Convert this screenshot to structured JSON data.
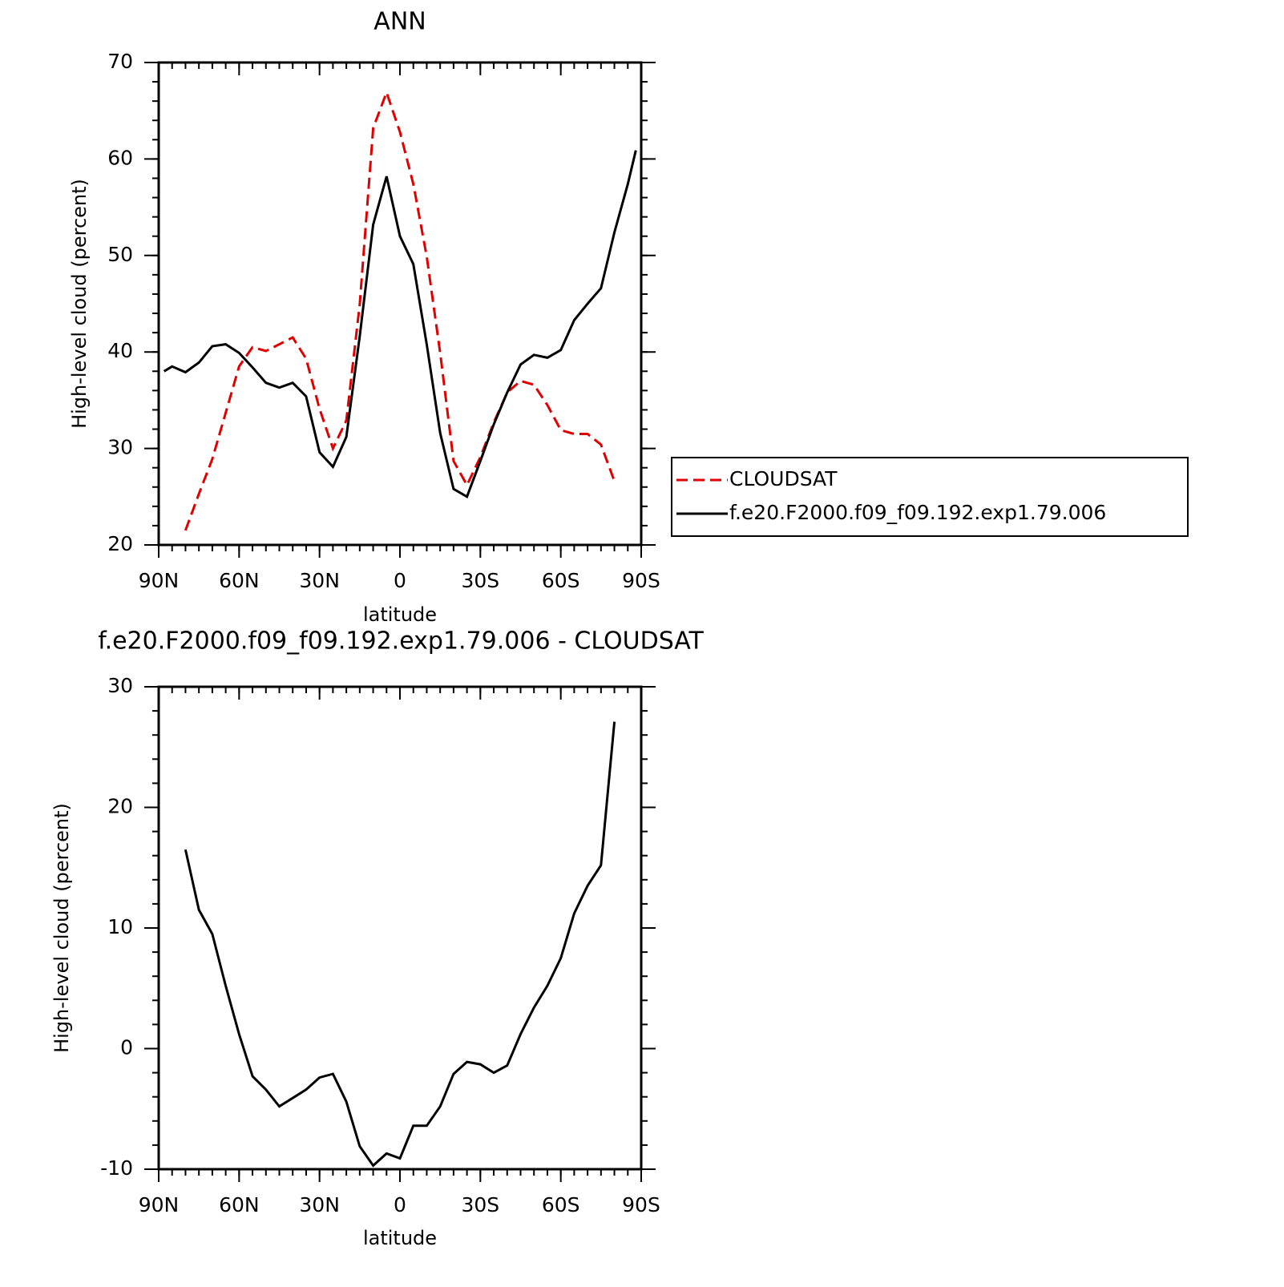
{
  "chart_data": [
    {
      "type": "line",
      "title": "ANN",
      "x_label": "latitude",
      "y_label": "High-level cloud (percent)",
      "xlim": [
        90,
        -90
      ],
      "ylim": [
        20,
        70
      ],
      "xticks": [
        {
          "value": 90,
          "label": "90N"
        },
        {
          "value": 60,
          "label": "60N"
        },
        {
          "value": 30,
          "label": "30N"
        },
        0,
        {
          "value": -30,
          "label": "30S"
        },
        {
          "value": -60,
          "label": "60S"
        },
        {
          "value": -90,
          "label": "90S"
        }
      ],
      "yticks": [
        20,
        30,
        40,
        50,
        60,
        70
      ],
      "x_minor_step": 5,
      "y_minor_step": 2,
      "legend": "outside-right",
      "series": [
        {
          "name": "CLOUDSAT",
          "color": "#e00000",
          "style": "dashed",
          "x": [
            80,
            75,
            70,
            65,
            60,
            55,
            50,
            45,
            40,
            35,
            30,
            25,
            20,
            15,
            10,
            5,
            0,
            -5,
            -10,
            -15,
            -20,
            -25,
            -30,
            -35,
            -40,
            -45,
            -50,
            -55,
            -60,
            -65,
            -70,
            -75,
            -80
          ],
          "values": [
            21.5,
            25.3,
            28.9,
            33.7,
            38.5,
            40.5,
            40.1,
            40.8,
            41.5,
            39.3,
            34.1,
            30.0,
            32.9,
            44.9,
            63.2,
            66.9,
            62.8,
            57.4,
            49.9,
            39.9,
            28.7,
            26.2,
            29.1,
            32.7,
            35.8,
            37.0,
            36.6,
            34.5,
            31.9,
            31.5,
            31.5,
            30.4,
            26.6
          ]
        },
        {
          "name": "f.e20.F2000.f09_f09.192.exp1.79.006",
          "color": "#000000",
          "style": "solid",
          "x": [
            88,
            85,
            80,
            75,
            70,
            65,
            60,
            55,
            50,
            45,
            40,
            35,
            30,
            25,
            20,
            15,
            10,
            5,
            0,
            -5,
            -10,
            -15,
            -20,
            -25,
            -30,
            -35,
            -40,
            -45,
            -50,
            -55,
            -60,
            -65,
            -70,
            -75,
            -80,
            -85,
            -88
          ],
          "values": [
            38.0,
            38.5,
            37.9,
            38.9,
            40.6,
            40.8,
            39.9,
            38.4,
            36.8,
            36.3,
            36.8,
            35.4,
            29.6,
            28.1,
            31.2,
            41.6,
            53.2,
            58.2,
            52.0,
            49.1,
            40.8,
            31.6,
            25.8,
            25.0,
            28.7,
            32.5,
            35.8,
            38.7,
            39.7,
            39.4,
            40.2,
            43.3,
            45.0,
            46.6,
            52.4,
            57.4,
            60.9
          ]
        }
      ]
    },
    {
      "type": "line",
      "title": "f.e20.F2000.f09_f09.192.exp1.79.006 - CLOUDSAT",
      "x_label": "latitude",
      "y_label": "High-level cloud (percent)",
      "xlim": [
        90,
        -90
      ],
      "ylim": [
        -10,
        30
      ],
      "xticks": [
        {
          "value": 90,
          "label": "90N"
        },
        {
          "value": 60,
          "label": "60N"
        },
        {
          "value": 30,
          "label": "30N"
        },
        0,
        {
          "value": -30,
          "label": "30S"
        },
        {
          "value": -60,
          "label": "60S"
        },
        {
          "value": -90,
          "label": "90S"
        }
      ],
      "yticks": [
        -10,
        0,
        10,
        20,
        30
      ],
      "x_minor_step": 5,
      "y_minor_step": 2,
      "series": [
        {
          "color": "#000000",
          "style": "solid",
          "x": [
            80,
            75,
            70,
            65,
            60,
            55,
            50,
            45,
            40,
            35,
            30,
            25,
            20,
            15,
            10,
            5,
            0,
            -5,
            -10,
            -15,
            -20,
            -25,
            -30,
            -35,
            -40,
            -45,
            -50,
            -55,
            -60,
            -65,
            -70,
            -75,
            -80
          ],
          "values": [
            16.5,
            11.5,
            9.5,
            5.2,
            1.2,
            -2.3,
            -3.4,
            -4.8,
            -4.1,
            -3.4,
            -2.4,
            -2.1,
            -4.4,
            -8.1,
            -9.7,
            -8.7,
            -9.1,
            -6.4,
            -6.4,
            -4.8,
            -2.1,
            -1.1,
            -1.3,
            -2.0,
            -1.4,
            1.2,
            3.4,
            5.2,
            7.5,
            11.2,
            13.5,
            15.2,
            27.1
          ]
        }
      ]
    }
  ]
}
